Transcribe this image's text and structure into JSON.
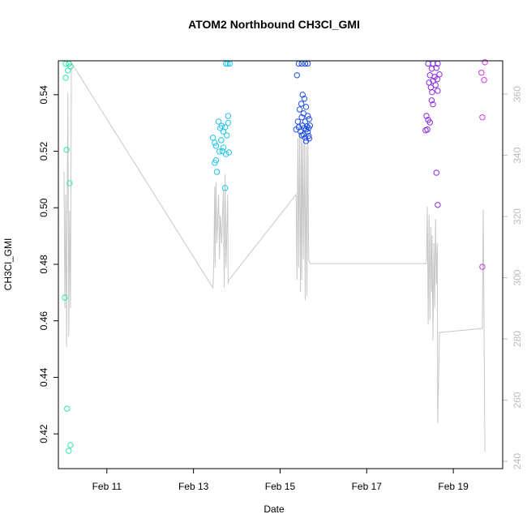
{
  "chart_data": {
    "type": "scatter",
    "title": "ATOM2 Northbound CH3Cl_GMI",
    "x_label": "Date",
    "y_label": "CH3Cl_GMI",
    "xlim": [
      9.88,
      20.14
    ],
    "ylim": [
      0.4077,
      0.552
    ],
    "y2lim": [
      237.6,
      370.9
    ],
    "xticks": [
      {
        "value": 11,
        "label": "Feb 11"
      },
      {
        "value": 13,
        "label": "Feb 13"
      },
      {
        "value": 15,
        "label": "Feb 15"
      },
      {
        "value": 17,
        "label": "Feb 17"
      },
      {
        "value": 19,
        "label": "Feb 19"
      }
    ],
    "yticks": [
      0.42,
      0.44,
      0.46,
      0.48,
      {
        "value": 0.5,
        "label": "0.50"
      },
      0.52,
      0.54
    ],
    "y2ticks": [
      240,
      260,
      280,
      300,
      320,
      340,
      360
    ],
    "y2_color": "#bbbbbb",
    "series": [
      {
        "color": "#2ee8b0",
        "x": [
          10.05,
          10.12,
          10.16,
          10.1,
          10.05,
          10.07,
          10.14,
          10.03,
          10.08,
          10.16,
          10.12
        ],
        "values": [
          0.551,
          0.551,
          0.55,
          0.5486,
          0.546,
          0.5205,
          0.5087,
          0.4682,
          0.4289,
          0.416,
          0.414
        ]
      },
      {
        "color": "#22c4e8",
        "x": [
          13.75,
          13.79,
          13.84,
          13.45,
          13.49,
          13.52,
          13.58,
          13.62,
          13.65,
          13.69,
          13.73,
          13.77,
          13.8,
          13.8,
          13.69,
          13.6,
          13.64,
          13.75,
          13.82,
          13.52,
          13.49,
          13.54,
          13.73,
          13.67
        ],
        "values": [
          0.551,
          0.551,
          0.551,
          0.5248,
          0.523,
          0.5219,
          0.5305,
          0.5282,
          0.529,
          0.527,
          0.5285,
          0.5256,
          0.5325,
          0.53,
          0.5213,
          0.5199,
          0.5239,
          0.519,
          0.5196,
          0.5168,
          0.5159,
          0.5127,
          0.507,
          0.52
        ]
      },
      {
        "color": "#1e4fe6",
        "x": [
          15.43,
          15.5,
          15.58,
          15.64,
          15.39,
          15.52,
          15.56,
          15.49,
          15.45,
          15.6,
          15.54,
          15.64,
          15.41,
          15.5,
          15.58,
          15.67,
          15.43,
          15.52,
          15.62,
          15.37,
          15.47,
          15.56,
          15.6,
          15.66,
          15.69,
          15.64,
          15.54,
          15.66,
          15.58,
          15.67,
          15.5,
          15.6
        ],
        "values": [
          0.551,
          0.551,
          0.551,
          0.551,
          0.5469,
          0.54,
          0.5386,
          0.5368,
          0.5348,
          0.5357,
          0.5334,
          0.5325,
          0.5305,
          0.532,
          0.5305,
          0.5314,
          0.5285,
          0.5291,
          0.5288,
          0.5277,
          0.527,
          0.5282,
          0.5277,
          0.5282,
          0.5291,
          0.5268,
          0.5259,
          0.5254,
          0.5248,
          0.5245,
          0.5256,
          0.5236
        ]
      },
      {
        "color": "#8a2be2",
        "x": [
          18.42,
          18.53,
          18.64,
          18.5,
          18.61,
          18.46,
          18.57,
          18.68,
          18.44,
          18.53,
          18.63,
          18.48,
          18.59,
          18.51,
          18.64,
          18.5,
          18.53,
          18.38,
          18.42,
          18.46,
          18.4,
          18.36,
          18.61,
          18.64
        ],
        "values": [
          0.551,
          0.551,
          0.551,
          0.5492,
          0.5495,
          0.5469,
          0.5463,
          0.5472,
          0.5443,
          0.5449,
          0.5455,
          0.5426,
          0.5434,
          0.5409,
          0.5414,
          0.538,
          0.5366,
          0.5325,
          0.5311,
          0.5302,
          0.5277,
          0.5274,
          0.5124,
          0.501
        ]
      },
      {
        "color": "#d633e8",
        "x": [
          19.73,
          19.65,
          19.71,
          19.67,
          19.67
        ],
        "values": [
          0.5515,
          0.5478,
          0.5452,
          0.532,
          0.4791
        ]
      },
      {
        "type": "line",
        "axis": "y2",
        "color": "#c8c8c8",
        "x": [
          10.01,
          10.03,
          10.05,
          10.07,
          10.09,
          10.1,
          10.12,
          10.14,
          10.16,
          10.18,
          13.45,
          13.47,
          13.49,
          13.5,
          13.52,
          13.54,
          13.58,
          13.6,
          13.62,
          13.65,
          13.69,
          13.71,
          13.73,
          13.75,
          13.79,
          13.8,
          13.82,
          15.37,
          15.39,
          15.41,
          15.43,
          15.45,
          15.47,
          15.49,
          15.5,
          15.52,
          15.54,
          15.56,
          15.58,
          15.6,
          15.62,
          15.64,
          15.66,
          15.69,
          18.38,
          18.4,
          18.42,
          18.44,
          18.46,
          18.48,
          18.5,
          18.51,
          18.53,
          18.55,
          18.57,
          18.59,
          18.61,
          18.63,
          18.64,
          18.68,
          19.67,
          19.69,
          19.73
        ],
        "values": [
          334.6,
          290.1,
          327.2,
          277.4,
          337.7,
          360.3,
          280.8,
          321.9,
          290.1,
          370.3,
          296.7,
          306.0,
          329.8,
          303.3,
          331.1,
          311.3,
          327.2,
          306.0,
          320.5,
          311.3,
          328.5,
          296.7,
          333.8,
          303.3,
          327.2,
          298.0,
          299.3,
          327.2,
          299.3,
          345.7,
          303.3,
          351.0,
          295.4,
          347.0,
          299.3,
          344.4,
          306.0,
          348.3,
          292.7,
          343.0,
          294.0,
          345.7,
          306.0,
          304.6,
          304.6,
          323.2,
          284.8,
          320.5,
          286.1,
          316.6,
          295.4,
          313.9,
          279.5,
          311.3,
          290.1,
          319.2,
          298.0,
          311.3,
          252.5,
          282.1,
          283.4,
          322.4,
          243.2
        ]
      }
    ]
  }
}
